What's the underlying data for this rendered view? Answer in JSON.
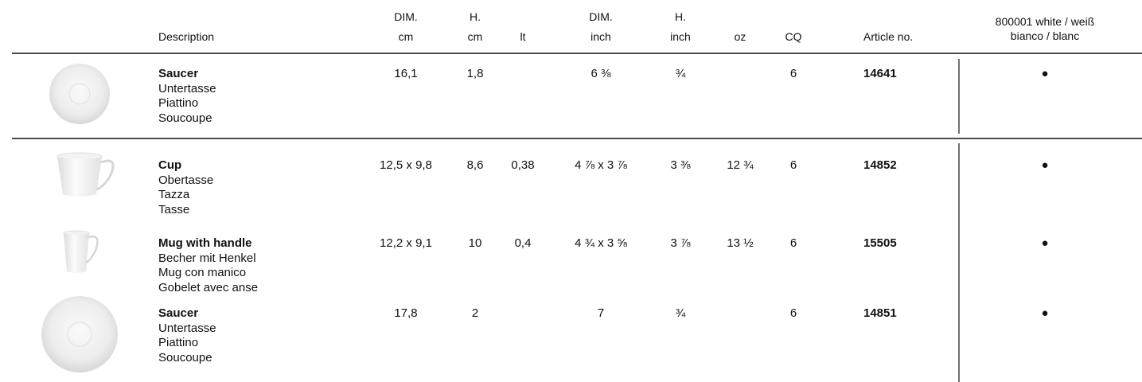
{
  "header": {
    "columns": [
      {
        "lines": [
          "Description"
        ]
      },
      {
        "lines": [
          "DIM.",
          "cm"
        ]
      },
      {
        "lines": [
          "H.",
          "cm"
        ]
      },
      {
        "lines": [
          "lt"
        ]
      },
      {
        "lines": [
          "DIM.",
          "inch"
        ]
      },
      {
        "lines": [
          "H.",
          "inch"
        ]
      },
      {
        "lines": [
          "oz"
        ]
      },
      {
        "lines": [
          "CQ"
        ]
      },
      {
        "lines": [
          "Article no."
        ]
      },
      {
        "lines": [
          "800001 white / weiß",
          "bianco / blanc"
        ]
      }
    ]
  },
  "groups": [
    {
      "rows": [
        {
          "description": [
            "Saucer",
            "Untertasse",
            "Piattino",
            "Soucoupe"
          ],
          "cells": {
            "dim_cm": "16,1",
            "h_cm": "1,8",
            "dim_inch": "6 ⅜",
            "h_inch": "¾",
            "cq": "6",
            "article": "14641",
            "white": "●"
          }
        }
      ]
    },
    {
      "rows": [
        {
          "description": [
            "Cup",
            "Obertasse",
            "Tazza",
            "Tasse"
          ],
          "cells": {
            "dim_cm": "12,5 x 9,8",
            "h_cm": "8,6",
            "lt": "0,38",
            "dim_inch": "4 ⅞ x 3 ⅞",
            "h_inch": "3 ⅜",
            "oz": "12 ¾",
            "cq": "6",
            "article": "14852",
            "white": "●"
          }
        },
        {
          "description": [
            "Mug with handle",
            "Becher mit Henkel",
            "Mug con manico",
            "Gobelet avec anse"
          ],
          "cells": {
            "dim_cm": "12,2 x 9,1",
            "h_cm": "10",
            "lt": "0,4",
            "dim_inch": "4 ¾ x 3 ⅝",
            "h_inch": "3 ⅞",
            "oz": "13 ½",
            "cq": "6",
            "article": "15505",
            "white": "●"
          }
        },
        {
          "description": [
            "Saucer",
            "Untertasse",
            "Piattino",
            "Soucoupe"
          ],
          "cells": {
            "dim_cm": "17,8",
            "h_cm": "2",
            "dim_inch": "7",
            "h_inch": "¾",
            "cq": "6",
            "article": "14851",
            "white": "●"
          }
        }
      ]
    }
  ]
}
